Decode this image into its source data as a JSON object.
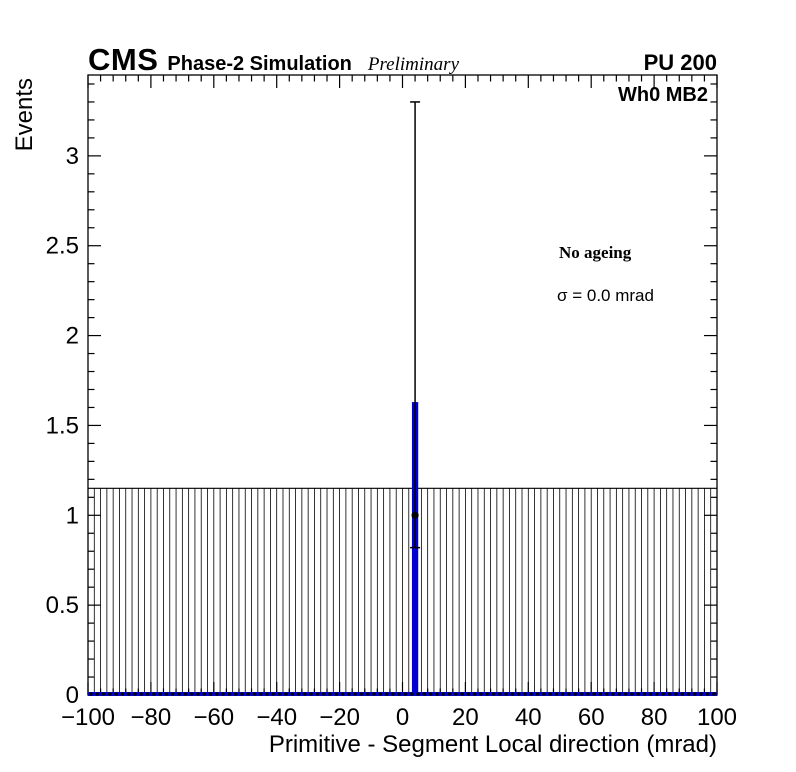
{
  "header": {
    "cms": "CMS",
    "subtitle": "Phase-2 Simulation",
    "preliminary": "Preliminary",
    "pu": "PU 200"
  },
  "annotations": {
    "chamber": "Wh0 MB2",
    "ageing": "No ageing",
    "sigma": "σ = 0.0 mrad"
  },
  "chart_data": {
    "type": "bar",
    "title": "",
    "xlabel": "Primitive - Segment Local direction (mrad)",
    "ylabel": "Events",
    "xlim": [
      -100,
      100
    ],
    "ylim": [
      0,
      3.45
    ],
    "x_tick_step": 20,
    "x_minor_step": 4,
    "y_tick_step": 0.5,
    "y_minor_step": 0.1,
    "x_tick_labels": [
      "−100",
      "−80",
      "−60",
      "−40",
      "−20",
      "0",
      "20",
      "40",
      "60",
      "80",
      "100"
    ],
    "y_tick_labels": [
      "0",
      "0.5",
      "1",
      "1.5",
      "2",
      "2.5",
      "3"
    ],
    "grid": false,
    "legend": "none",
    "bin_width": 2,
    "hatch_band": {
      "y_bottom": 0,
      "y_top": 1.15,
      "style": "vertical-hatch",
      "color": "#000000"
    },
    "histogram": {
      "color": "#0000d0",
      "baseline_y": 0,
      "spike_bin_center": 4,
      "spike_bin_low_edge": 3,
      "spike_bin_high_edge": 5,
      "spike_height": 1.63
    },
    "data_points": [
      {
        "x": 4,
        "y": 1.0,
        "err_low": 0.82,
        "err_high": 3.3
      }
    ],
    "zero_markers": {
      "y": 0,
      "x_start": -99,
      "x_end": 99,
      "step": 2,
      "color": "#000000"
    }
  }
}
